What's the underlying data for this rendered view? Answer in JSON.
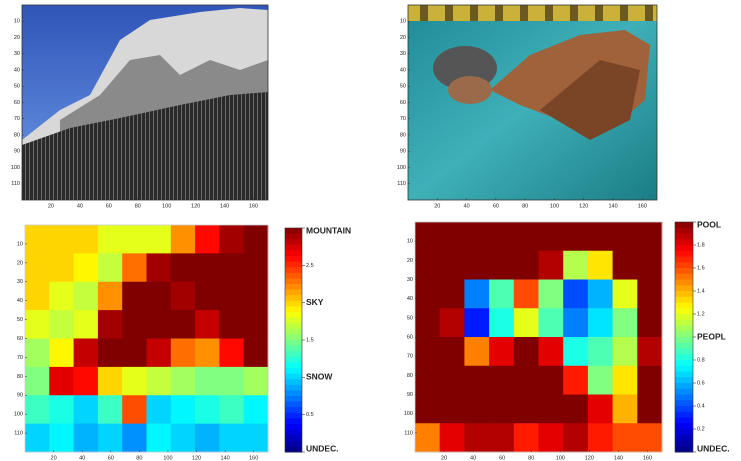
{
  "chart_data": [
    {
      "type": "image",
      "xlim": [
        0,
        170
      ],
      "ylim": [
        0,
        120
      ],
      "xticks": [
        20,
        40,
        60,
        80,
        100,
        120,
        140,
        160
      ],
      "yticks": [
        10,
        20,
        30,
        40,
        50,
        60,
        70,
        80,
        90,
        100,
        110
      ]
    },
    {
      "type": "image",
      "xlim": [
        0,
        170
      ],
      "ylim": [
        0,
        120
      ],
      "xticks": [
        20,
        40,
        60,
        80,
        100,
        120,
        140,
        160
      ],
      "yticks": [
        10,
        20,
        30,
        40,
        50,
        60,
        70,
        80,
        90,
        100,
        110
      ]
    },
    {
      "type": "heatmap",
      "xlim": [
        0,
        170
      ],
      "ylim": [
        0,
        120
      ],
      "xticks": [
        20,
        40,
        60,
        80,
        100,
        120,
        140,
        160
      ],
      "yticks": [
        10,
        20,
        30,
        40,
        50,
        60,
        70,
        80,
        90,
        100,
        110
      ],
      "zlim": [
        0,
        3
      ],
      "colorbar_ticks": [
        {
          "value": 3,
          "label": "MOUNTAIN"
        },
        2.5,
        {
          "value": 2,
          "label": "SKY"
        },
        1.5,
        {
          "value": 1,
          "label": "SNOW"
        },
        0.5,
        {
          "value": 0,
          "label": "UNDEC."
        }
      ],
      "z": [
        [
          2,
          2,
          2,
          1.8,
          1.8,
          1.8,
          2.2,
          2.6,
          2.9,
          3
        ],
        [
          2,
          2,
          1.9,
          1.7,
          2.3,
          2.9,
          3,
          3,
          3,
          3
        ],
        [
          2,
          1.8,
          1.7,
          2.2,
          3,
          3,
          2.9,
          3,
          3,
          3
        ],
        [
          1.8,
          1.7,
          1.8,
          2.9,
          3,
          3,
          3,
          2.8,
          3,
          3
        ],
        [
          1.6,
          1.9,
          2.8,
          3,
          3,
          2.8,
          2.3,
          2.2,
          2.6,
          3
        ],
        [
          1.5,
          2.7,
          2.6,
          2,
          1.8,
          1.7,
          1.6,
          1.5,
          1.5,
          1.6
        ],
        [
          1.3,
          1.2,
          1,
          1.3,
          2.4,
          1,
          1.1,
          1.2,
          1.3,
          1.1
        ],
        [
          1,
          1.1,
          0.9,
          1,
          0.8,
          1.1,
          1,
          0.9,
          1,
          1
        ]
      ]
    },
    {
      "type": "heatmap",
      "xlim": [
        0,
        170
      ],
      "ylim": [
        0,
        120
      ],
      "xticks": [
        20,
        40,
        60,
        80,
        100,
        120,
        140,
        160
      ],
      "yticks": [
        10,
        20,
        30,
        40,
        50,
        60,
        70,
        80,
        90,
        100,
        110
      ],
      "zlim": [
        0,
        2
      ],
      "colorbar_ticks": [
        {
          "value": 2,
          "label": "POOL"
        },
        1.8,
        1.6,
        1.4,
        1.2,
        {
          "value": 1,
          "label": "PEOPL"
        },
        0.8,
        0.6,
        0.4,
        0.2,
        {
          "value": 0,
          "label": "UNDEC."
        }
      ],
      "z": [
        [
          2,
          2,
          2,
          2,
          2,
          2,
          2,
          2,
          2,
          2
        ],
        [
          2,
          2,
          2,
          2,
          2,
          1.9,
          1.1,
          1.3,
          2,
          2
        ],
        [
          2,
          2,
          0.5,
          0.9,
          1.6,
          1,
          0.4,
          0.6,
          1.2,
          2
        ],
        [
          2,
          1.9,
          0.3,
          0.8,
          1.2,
          0.9,
          0.5,
          0.7,
          1,
          2
        ],
        [
          2,
          2,
          1.5,
          1.8,
          2,
          1.8,
          0.8,
          0.9,
          1.1,
          1.9
        ],
        [
          2,
          2,
          2,
          2,
          2,
          2,
          1.7,
          1,
          1.3,
          2
        ],
        [
          2,
          2,
          2,
          2,
          2,
          2,
          2,
          1.8,
          1.4,
          2
        ],
        [
          1.5,
          1.8,
          1.9,
          1.9,
          1.7,
          1.8,
          1.9,
          1.7,
          1.6,
          1.6
        ]
      ]
    }
  ]
}
